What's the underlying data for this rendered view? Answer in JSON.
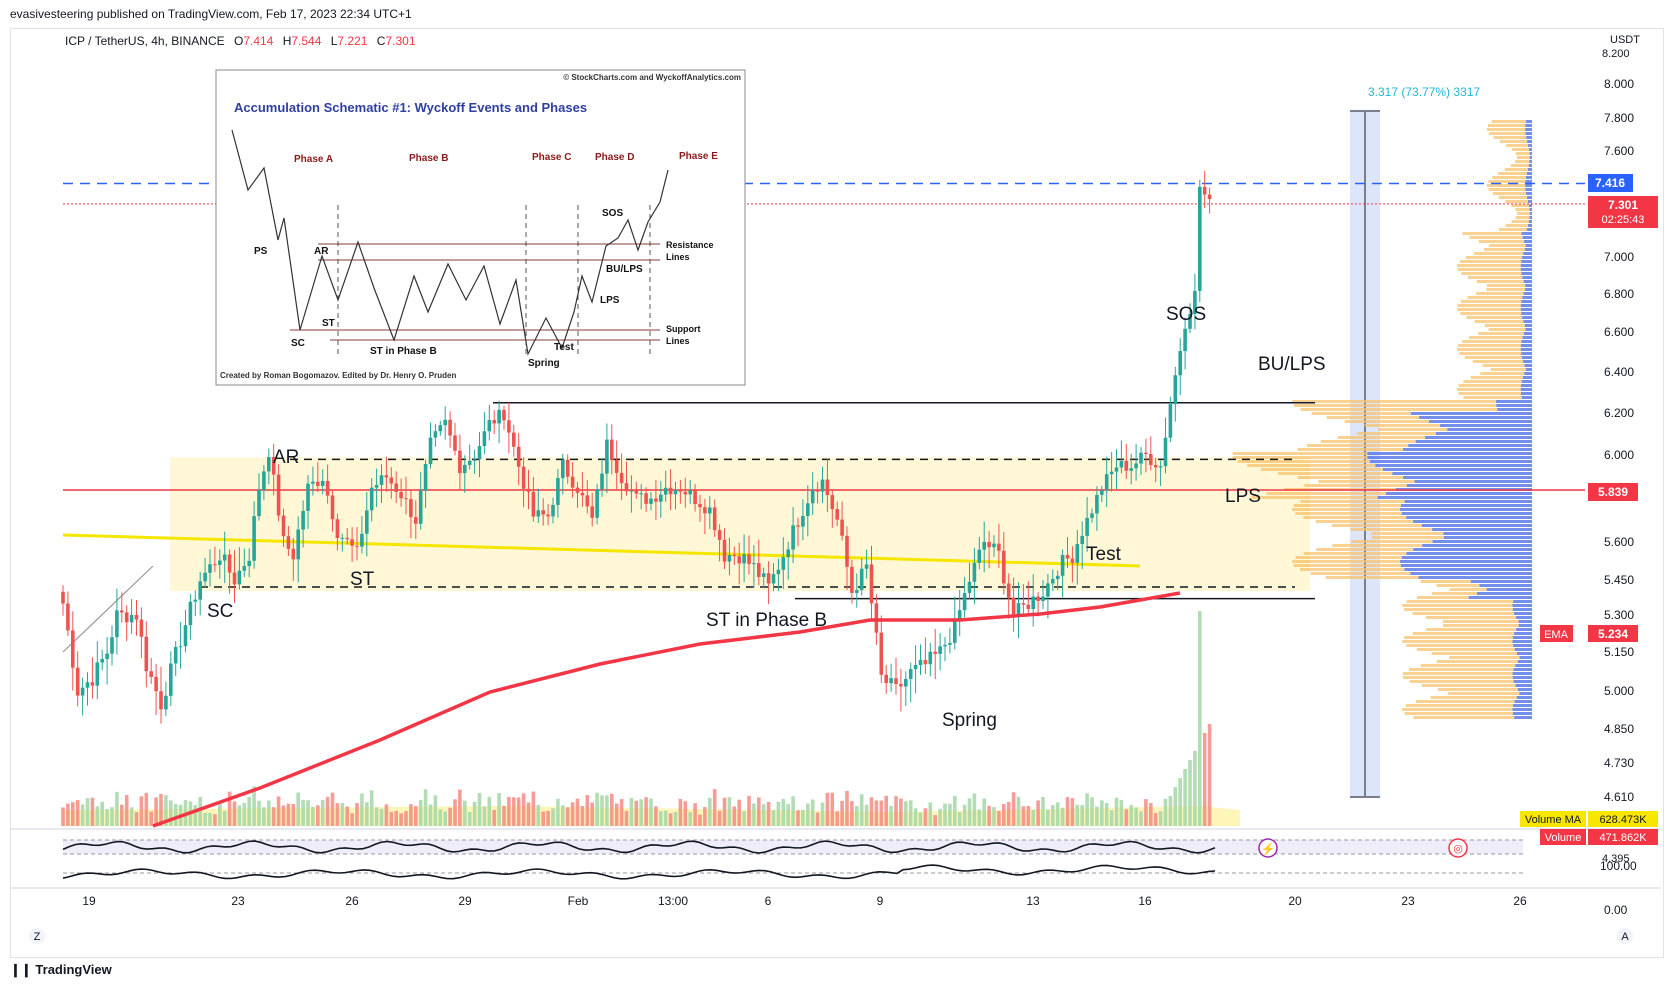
{
  "header": {
    "published": "evasivesteering published on TradingView.com, Feb 17, 2023 22:34 UTC+1",
    "symbol": "ICP / TetherUS, 4h, BINANCE",
    "ohlc": {
      "O": "7.414",
      "H": "7.544",
      "L": "7.221",
      "C": "7.301"
    },
    "o_label": "O",
    "h_label": "H",
    "l_label": "L",
    "c_label": "C"
  },
  "footer": {
    "brand": "TradingView"
  },
  "colors": {
    "up": "#26a69a",
    "down": "#ef5350",
    "ema": "#f23645",
    "poc": "#f23645",
    "range_fill": "#fff7d6",
    "profile_blue": "#5b7be8",
    "profile_orange": "#f7c26b",
    "yellow_line": "#f5e600",
    "measure": "#b9c7f3"
  },
  "inset": {
    "credit": "© StockCharts.com and WyckoffAnalytics.com",
    "title": "Accumulation Schematic #1: Wyckoff Events and Phases",
    "phases": [
      "Phase A",
      "Phase B",
      "Phase C",
      "Phase D",
      "Phase E"
    ],
    "labels": {
      "ps": "PS",
      "ar": "AR",
      "st": "ST",
      "sc": "SC",
      "st_phase_b": "ST in Phase B",
      "spring": "Spring",
      "test": "Test",
      "lps": "LPS",
      "bu_lps": "BU/LPS",
      "sos": "SOS"
    },
    "resistance": [
      "Resistance",
      "Lines"
    ],
    "support": [
      "Support",
      "Lines"
    ],
    "footer": "Created by Roman Bogomazov. Edited by Dr. Henry O. Pruden"
  },
  "annotations": {
    "ar": "AR",
    "st": "ST",
    "sc": "SC",
    "st_phase_b": "ST in Phase B",
    "spring": "Spring",
    "test": "Test",
    "lps": "LPS",
    "bu_lps": "BU/LPS",
    "sos": "SOS",
    "measure": "3.317 (73.77%) 3317"
  },
  "price_badges": {
    "blue": "7.416",
    "last": "7.301",
    "countdown": "02:25:43",
    "poc": "5.839",
    "ema_label": "EMA",
    "ema": "5.234",
    "vol_ma_label": "Volume MA",
    "vol_ma": "628.473K",
    "vol_label": "Volume",
    "vol": "471.862K"
  },
  "axis_misc": {
    "usdt": "USDT",
    "osc_top": "100.00",
    "osc_zero": "0.00",
    "z": "Z",
    "a": "A",
    "partial_top": "8.200",
    "partial_bottom": "4.395"
  },
  "chart_data": {
    "type": "candlestick",
    "y_ticks": [
      8.0,
      7.8,
      7.6,
      7.0,
      6.8,
      6.6,
      6.4,
      6.2,
      6.0,
      5.6,
      5.45,
      5.3,
      5.15,
      5.0,
      4.85,
      4.73,
      4.61
    ],
    "y_tick_labels": [
      "8.000",
      "7.800",
      "7.600",
      "7.000",
      "6.800",
      "6.600",
      "6.400",
      "6.200",
      "6.000",
      "5.600",
      "5.450",
      "5.300",
      "5.150",
      "5.000",
      "4.850",
      "4.730",
      "4.610"
    ],
    "x_labels": [
      "19",
      "23",
      "26",
      "29",
      "Feb",
      "13:00",
      "6",
      "9",
      "13",
      "16",
      "20",
      "23",
      "26"
    ],
    "levels": {
      "resistance": 6.25,
      "range_top": 5.98,
      "range_bottom": 5.42,
      "support": 5.37,
      "poc": 5.839,
      "blue_dashed": 7.416,
      "last": 7.301
    },
    "ema_path": [
      [
        5.234,
        0
      ]
    ],
    "anchors": [
      [
        0,
        5.35
      ],
      [
        3,
        5.0
      ],
      [
        6,
        5.05
      ],
      [
        9,
        5.15
      ],
      [
        11,
        5.3
      ],
      [
        15,
        5.3
      ],
      [
        17,
        5.1
      ],
      [
        20,
        4.95
      ],
      [
        24,
        5.2
      ],
      [
        28,
        5.45
      ],
      [
        32,
        5.55
      ],
      [
        35,
        5.45
      ],
      [
        38,
        5.55
      ],
      [
        40,
        5.85
      ],
      [
        42,
        6.02
      ],
      [
        45,
        5.6
      ],
      [
        47,
        5.55
      ],
      [
        50,
        5.85
      ],
      [
        53,
        5.9
      ],
      [
        56,
        5.65
      ],
      [
        60,
        5.55
      ],
      [
        63,
        5.85
      ],
      [
        66,
        5.9
      ],
      [
        69,
        5.82
      ],
      [
        72,
        5.7
      ],
      [
        75,
        6.05
      ],
      [
        78,
        6.15
      ],
      [
        81,
        5.95
      ],
      [
        84,
        6.0
      ],
      [
        87,
        6.15
      ],
      [
        90,
        6.2
      ],
      [
        93,
        5.95
      ],
      [
        96,
        5.72
      ],
      [
        99,
        5.72
      ],
      [
        102,
        5.95
      ],
      [
        105,
        5.85
      ],
      [
        108,
        5.7
      ],
      [
        111,
        6.05
      ],
      [
        114,
        5.9
      ],
      [
        117,
        5.8
      ],
      [
        120,
        5.8
      ],
      [
        123,
        5.85
      ],
      [
        126,
        5.85
      ],
      [
        129,
        5.8
      ],
      [
        132,
        5.75
      ],
      [
        135,
        5.55
      ],
      [
        138,
        5.55
      ],
      [
        141,
        5.5
      ],
      [
        144,
        5.42
      ],
      [
        147,
        5.55
      ],
      [
        150,
        5.7
      ],
      [
        153,
        5.85
      ],
      [
        155,
        5.88
      ],
      [
        158,
        5.7
      ],
      [
        161,
        5.4
      ],
      [
        164,
        5.5
      ],
      [
        167,
        5.05
      ],
      [
        170,
        5.0
      ],
      [
        173,
        5.07
      ],
      [
        176,
        5.1
      ],
      [
        179,
        5.15
      ],
      [
        182,
        5.25
      ],
      [
        185,
        5.45
      ],
      [
        188,
        5.6
      ],
      [
        191,
        5.55
      ],
      [
        194,
        5.3
      ],
      [
        197,
        5.35
      ],
      [
        200,
        5.4
      ],
      [
        203,
        5.5
      ],
      [
        206,
        5.55
      ],
      [
        209,
        5.7
      ],
      [
        212,
        5.85
      ],
      [
        215,
        5.95
      ],
      [
        218,
        5.95
      ],
      [
        221,
        6.0
      ],
      [
        224,
        5.95
      ],
      [
        226,
        6.25
      ],
      [
        229,
        6.65
      ],
      [
        231,
        6.8
      ],
      [
        232,
        7.4
      ],
      [
        234,
        7.3
      ]
    ]
  }
}
